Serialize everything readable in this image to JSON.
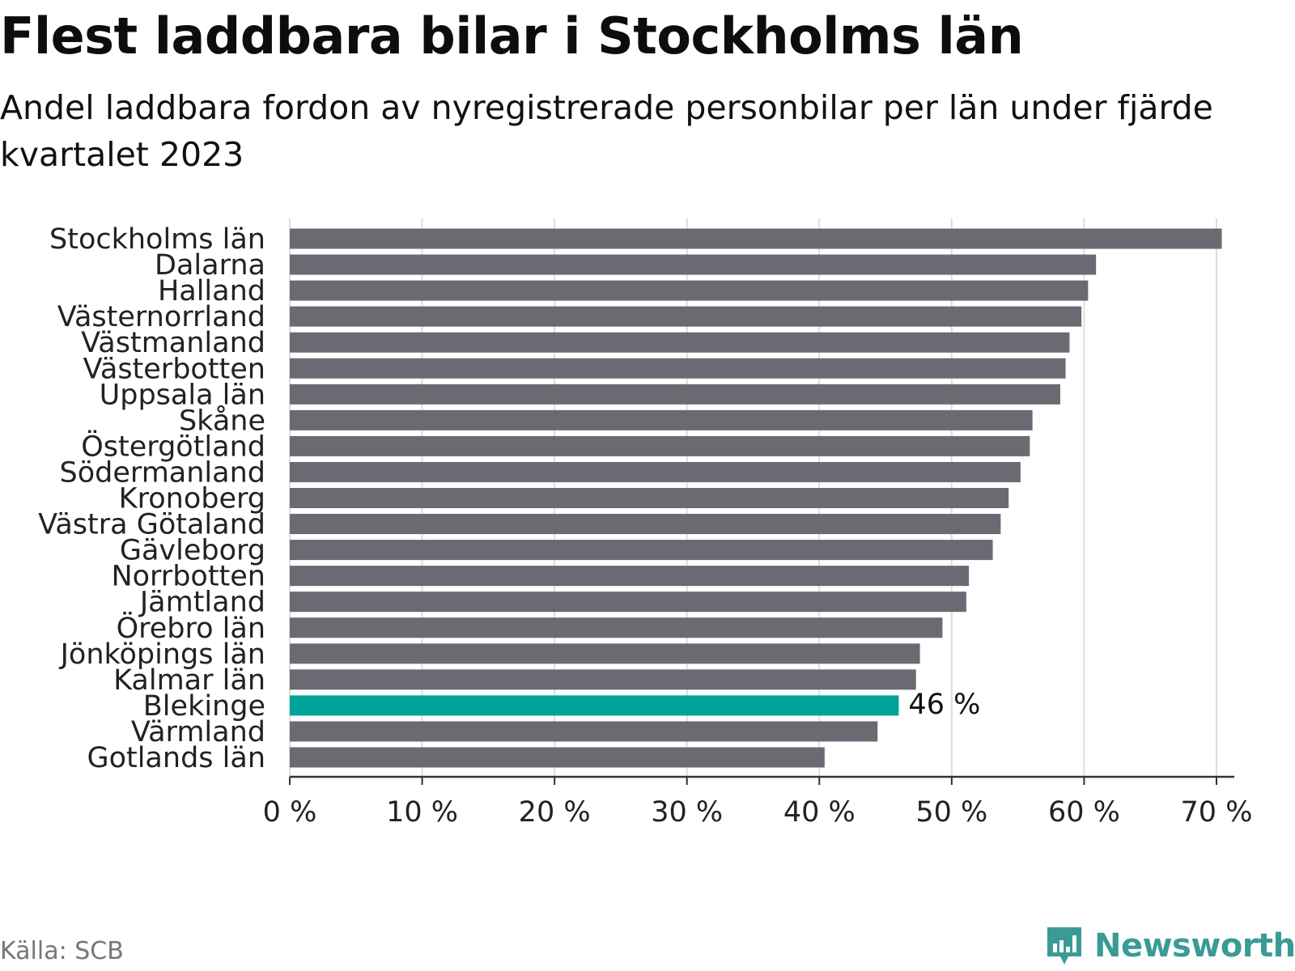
{
  "chart_data": {
    "type": "bar",
    "orientation": "horizontal",
    "title": "Flest laddbara bilar i Stockholms län",
    "subtitle": "Andel laddbara fordon av nyregistrerade personbilar per län under fjärde kvartalet 2023",
    "categories": [
      "Stockholms län",
      "Dalarna",
      "Halland",
      "Västernorrland",
      "Västmanland",
      "Västerbotten",
      "Uppsala län",
      "Skåne",
      "Östergötland",
      "Södermanland",
      "Kronoberg",
      "Västra Götaland",
      "Gävleborg",
      "Norrbotten",
      "Jämtland",
      "Örebro län",
      "Jönköpings län",
      "Kalmar län",
      "Blekinge",
      "Värmland",
      "Gotlands län"
    ],
    "values": [
      70.4,
      60.9,
      60.3,
      59.8,
      58.9,
      58.6,
      58.2,
      56.1,
      55.9,
      55.2,
      54.3,
      53.7,
      53.1,
      51.3,
      51.1,
      49.3,
      47.6,
      47.3,
      46.0,
      44.4,
      40.4
    ],
    "highlight": "Blekinge",
    "highlight_label": "46 %",
    "xlim": [
      0,
      70
    ],
    "xticks": [
      0,
      10,
      20,
      30,
      40,
      50,
      60,
      70
    ],
    "xtick_labels": [
      "0 %",
      "10 %",
      "20 %",
      "30 %",
      "40 %",
      "50 %",
      "60 %",
      "70 %"
    ],
    "xlabel": "",
    "ylabel": "",
    "grid": true,
    "bar_color": "#6b6a72",
    "highlight_color": "#00a39a"
  },
  "footer": {
    "source": "Källa: SCB",
    "brand": "Newsworthy",
    "brand_color": "#3a9b96"
  }
}
